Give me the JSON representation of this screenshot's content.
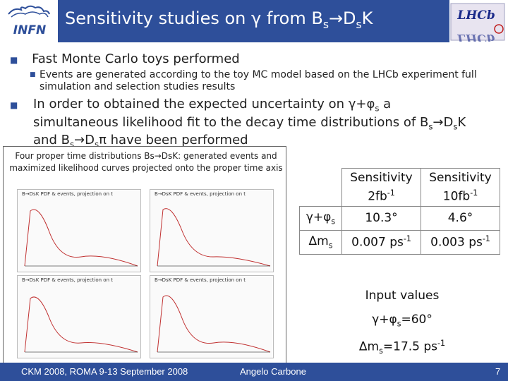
{
  "header": {
    "title_pre": "Sensitivity studies on ",
    "title_gamma": "γ",
    "title_from": " from B",
    "title_s1": "s",
    "title_arrow": "→",
    "title_D": "D",
    "title_s2": "s",
    "title_K": "K",
    "infn_logo_text": "INFN",
    "lhcb_logo_text": "LHCb"
  },
  "bullets": {
    "b1": "Fast Monte Carlo toys performed",
    "b1_sub": "Events are generated according to the toy MC model based on the LHCb experiment full simulation and selection studies results",
    "b2_a": "In order to obtained the expected uncertainty on ",
    "b2_gamma": "γ+φ",
    "b2_s": "s",
    "b2_b": " a simultaneous likelihood fit to the decay time distributions of B",
    "b2_c": "→D",
    "b2_d": "K and B",
    "b2_e": "→D",
    "b2_f": "π have been performed"
  },
  "figure": {
    "caption": "Four proper time distributions Bs→DsK: generated events and maximized likelihood curves projected onto the proper time axis",
    "plot_titles": [
      "B→DsK PDF & events, projection on t",
      "B→DsK PDF & events, projection on t",
      "B→DsK PDF & events, projection on t",
      "B→DsK PDF & events, projection on t"
    ]
  },
  "table": {
    "col1": "Sensitivity",
    "col1_sub": "2fb",
    "col1_sup": "-1",
    "col2": "Sensitivity",
    "col2_sub": "10fb",
    "col2_sup": "-1",
    "row1_label": "γ+φ",
    "row1_sub": "s",
    "row1_v1": "10.3°",
    "row1_v2": "4.6°",
    "row2_label": "Δm",
    "row2_sub": "s",
    "row2_v1": "0.007 ps",
    "row2_v1_sup": "-1",
    "row2_v2": "0.003 ps",
    "row2_v2_sup": "-1"
  },
  "inputs": {
    "heading": "Input values",
    "l1_a": "γ+φ",
    "l1_sub": "s",
    "l1_b": "=60°",
    "l2_a": "Δm",
    "l2_sub": "s",
    "l2_b": "=17.5 ps",
    "l2_sup": "-1"
  },
  "footer": {
    "left": "CKM 2008, ROMA 9-13 September 2008",
    "middle": "Angelo Carbone",
    "page": "7"
  },
  "colors": {
    "brand": "#2e4f9a",
    "bullet": "#2e4f9a"
  }
}
